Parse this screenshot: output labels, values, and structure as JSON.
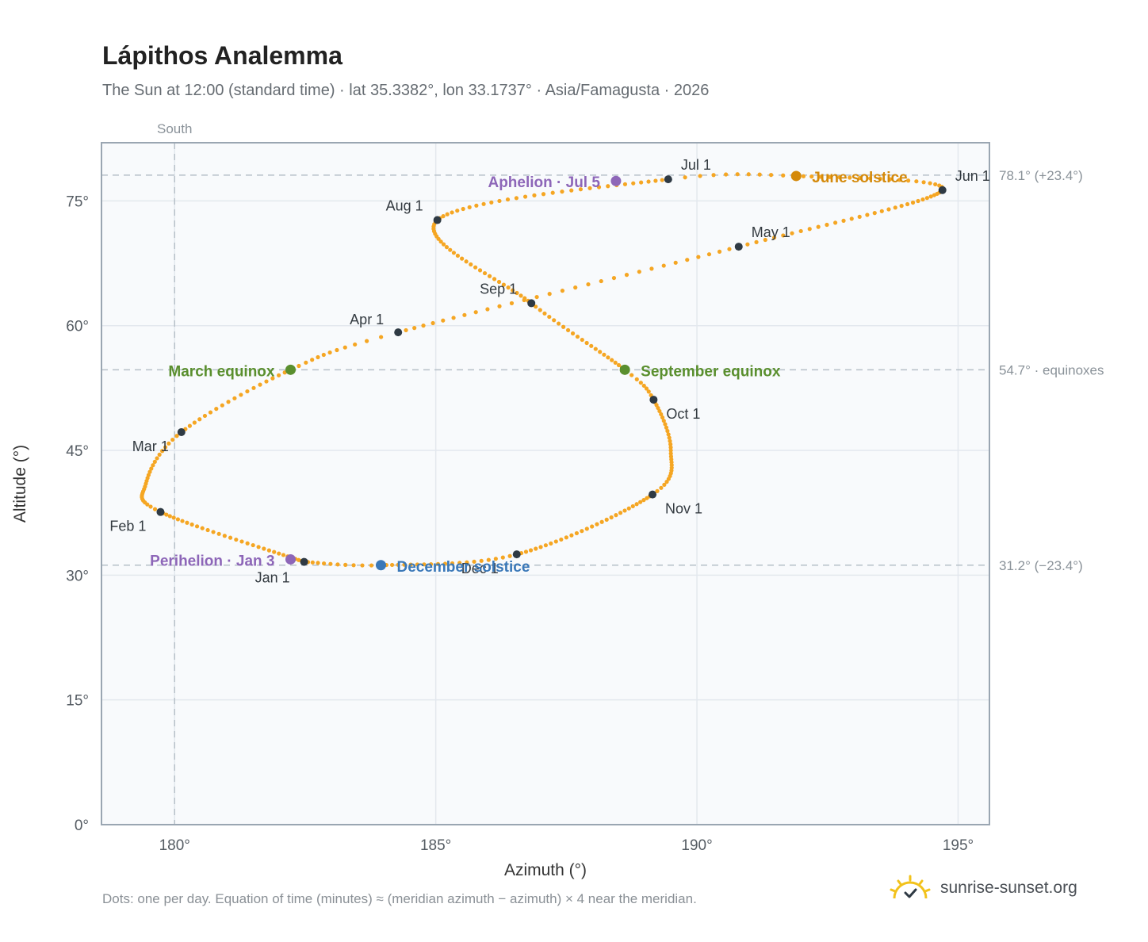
{
  "title": "Lápithos Analemma",
  "subtitle": "The Sun at 12:00 (standard time) · lat 35.3382°, lon 33.1737° · Asia/Famagusta · 2026",
  "footnote": "Dots: one per day. Equation of time (minutes) ≈ (meridian azimuth − azimuth) × 4 near the meridian.",
  "brand": {
    "name": "sunrise-sunset.org",
    "icon": "sun-logo-icon"
  },
  "colors": {
    "curve": "#f5a623",
    "month_marker": "#2f3a44",
    "equinox": "#5a8f2e",
    "solstice_june": "#d4890a",
    "solstice_december": "#3a78b8",
    "apsis": "#8d66b8",
    "ref_line": "#b6c0c8",
    "plot_bg": "#f8fafc"
  },
  "chart_data": {
    "type": "scatter",
    "xlabel": "Azimuth (°)",
    "ylabel": "Altitude (°)",
    "xlim": [
      178.6,
      195.6
    ],
    "ylim": [
      0,
      82
    ],
    "xticks": [
      180,
      185,
      190,
      195
    ],
    "xtick_labels": [
      "180°",
      "185°",
      "190°",
      "195°"
    ],
    "yticks": [
      0,
      15,
      30,
      45,
      60,
      75
    ],
    "ytick_labels": [
      "0°",
      "15°",
      "30°",
      "45°",
      "60°",
      "75°"
    ],
    "grid": true,
    "vertical_reference": {
      "x": 180,
      "label": "South"
    },
    "horizontal_references": [
      {
        "y": 78.1,
        "label": "78.1° (+23.4°)"
      },
      {
        "y": 54.7,
        "label": "54.7° · equinoxes"
      },
      {
        "y": 31.2,
        "label": "31.2° (−23.4°)"
      }
    ],
    "month_markers": [
      {
        "label": "Jan 1",
        "az": 182.48,
        "alt": 31.6
      },
      {
        "label": "Feb 1",
        "az": 179.73,
        "alt": 37.6
      },
      {
        "label": "Mar 1",
        "az": 180.13,
        "alt": 47.2
      },
      {
        "label": "Apr 1",
        "az": 184.28,
        "alt": 59.2
      },
      {
        "label": "May 1",
        "az": 190.8,
        "alt": 69.5
      },
      {
        "label": "Jun 1",
        "az": 194.7,
        "alt": 76.3
      },
      {
        "label": "Jul 1",
        "az": 189.45,
        "alt": 77.6
      },
      {
        "label": "Aug 1",
        "az": 185.03,
        "alt": 72.7
      },
      {
        "label": "Sep 1",
        "az": 186.83,
        "alt": 62.7
      },
      {
        "label": "Oct 1",
        "az": 189.17,
        "alt": 51.1
      },
      {
        "label": "Nov 1",
        "az": 189.15,
        "alt": 39.7
      },
      {
        "label": "Dec 1",
        "az": 186.55,
        "alt": 32.5
      }
    ],
    "events": [
      {
        "label": "March equinox",
        "az": 182.22,
        "alt": 54.7,
        "kind": "equinox"
      },
      {
        "label": "September equinox",
        "az": 188.62,
        "alt": 54.7,
        "kind": "equinox"
      },
      {
        "label": "June solstice",
        "az": 191.9,
        "alt": 78.0,
        "kind": "solstice_june"
      },
      {
        "label": "December solstice",
        "az": 183.95,
        "alt": 31.2,
        "kind": "solstice_december"
      },
      {
        "label": "Aphelion · Jul 5",
        "az": 188.45,
        "alt": 77.4,
        "kind": "apsis"
      },
      {
        "label": "Perihelion · Jan 3",
        "az": 182.22,
        "alt": 31.9,
        "kind": "apsis"
      }
    ],
    "curve_anchors": [
      {
        "day": 1,
        "az": 182.48,
        "alt": 31.6
      },
      {
        "day": 32,
        "az": 179.73,
        "alt": 37.6
      },
      {
        "day": 45,
        "az": 179.45,
        "alt": 41.0
      },
      {
        "day": 60,
        "az": 180.13,
        "alt": 47.2
      },
      {
        "day": 79,
        "az": 182.22,
        "alt": 54.7
      },
      {
        "day": 91,
        "az": 184.28,
        "alt": 59.2
      },
      {
        "day": 121,
        "az": 190.8,
        "alt": 69.5
      },
      {
        "day": 152,
        "az": 194.7,
        "alt": 76.3
      },
      {
        "day": 172,
        "az": 191.9,
        "alt": 78.0
      },
      {
        "day": 182,
        "az": 189.45,
        "alt": 77.6
      },
      {
        "day": 213,
        "az": 185.03,
        "alt": 72.7
      },
      {
        "day": 244,
        "az": 186.83,
        "alt": 62.7
      },
      {
        "day": 266,
        "az": 188.62,
        "alt": 54.7
      },
      {
        "day": 274,
        "az": 189.17,
        "alt": 51.1
      },
      {
        "day": 290,
        "az": 189.5,
        "alt": 45.0
      },
      {
        "day": 305,
        "az": 189.15,
        "alt": 39.7
      },
      {
        "day": 335,
        "az": 186.55,
        "alt": 32.5
      },
      {
        "day": 355,
        "az": 183.95,
        "alt": 31.2
      },
      {
        "day": 366,
        "az": 182.48,
        "alt": 31.6
      }
    ]
  }
}
